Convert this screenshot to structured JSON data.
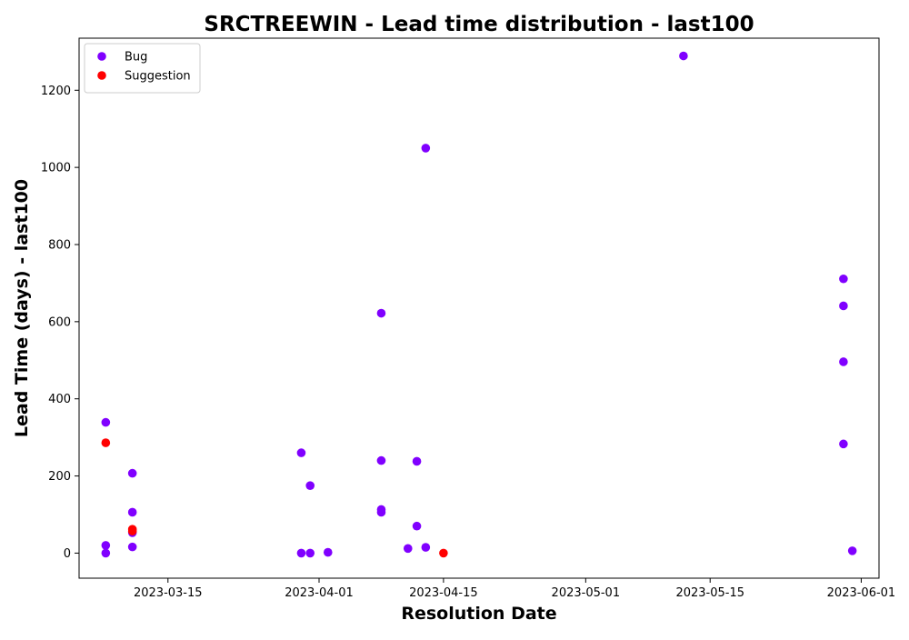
{
  "chart_data": {
    "type": "scatter",
    "title": "SRCTREEWIN - Lead time distribution - last100",
    "xlabel": "Resolution Date",
    "ylabel": "Lead Time (days) - last100",
    "x_type": "date",
    "xlim": [
      "2023-03-05",
      "2023-06-03"
    ],
    "ylim": [
      -65,
      1335
    ],
    "x_ticks": [
      "2023-03-15",
      "2023-04-01",
      "2023-04-15",
      "2023-05-01",
      "2023-05-15",
      "2023-06-01"
    ],
    "y_ticks": [
      0,
      200,
      400,
      600,
      800,
      1000,
      1200
    ],
    "grid": false,
    "legend_position": "top-left",
    "series": [
      {
        "name": "Bug",
        "color": "#8000ff",
        "points": [
          {
            "x": "2023-03-08",
            "y": 339
          },
          {
            "x": "2023-03-08",
            "y": 0
          },
          {
            "x": "2023-03-08",
            "y": 20
          },
          {
            "x": "2023-03-11",
            "y": 207
          },
          {
            "x": "2023-03-11",
            "y": 106
          },
          {
            "x": "2023-03-11",
            "y": 53
          },
          {
            "x": "2023-03-11",
            "y": 16
          },
          {
            "x": "2023-03-30",
            "y": 260
          },
          {
            "x": "2023-03-30",
            "y": 0
          },
          {
            "x": "2023-03-31",
            "y": 175
          },
          {
            "x": "2023-03-31",
            "y": 0
          },
          {
            "x": "2023-04-02",
            "y": 2
          },
          {
            "x": "2023-04-08",
            "y": 622
          },
          {
            "x": "2023-04-08",
            "y": 240
          },
          {
            "x": "2023-04-08",
            "y": 113
          },
          {
            "x": "2023-04-08",
            "y": 106
          },
          {
            "x": "2023-04-11",
            "y": 12
          },
          {
            "x": "2023-04-12",
            "y": 238
          },
          {
            "x": "2023-04-12",
            "y": 70
          },
          {
            "x": "2023-04-13",
            "y": 1050
          },
          {
            "x": "2023-04-13",
            "y": 15
          },
          {
            "x": "2023-05-12",
            "y": 1289
          },
          {
            "x": "2023-05-30",
            "y": 711
          },
          {
            "x": "2023-05-30",
            "y": 641
          },
          {
            "x": "2023-05-30",
            "y": 496
          },
          {
            "x": "2023-05-30",
            "y": 283
          },
          {
            "x": "2023-05-31",
            "y": 6
          }
        ]
      },
      {
        "name": "Suggestion",
        "color": "#ff0000",
        "points": [
          {
            "x": "2023-03-08",
            "y": 286
          },
          {
            "x": "2023-03-11",
            "y": 62
          },
          {
            "x": "2023-03-11",
            "y": 57
          },
          {
            "x": "2023-04-15",
            "y": 0
          }
        ]
      }
    ]
  }
}
